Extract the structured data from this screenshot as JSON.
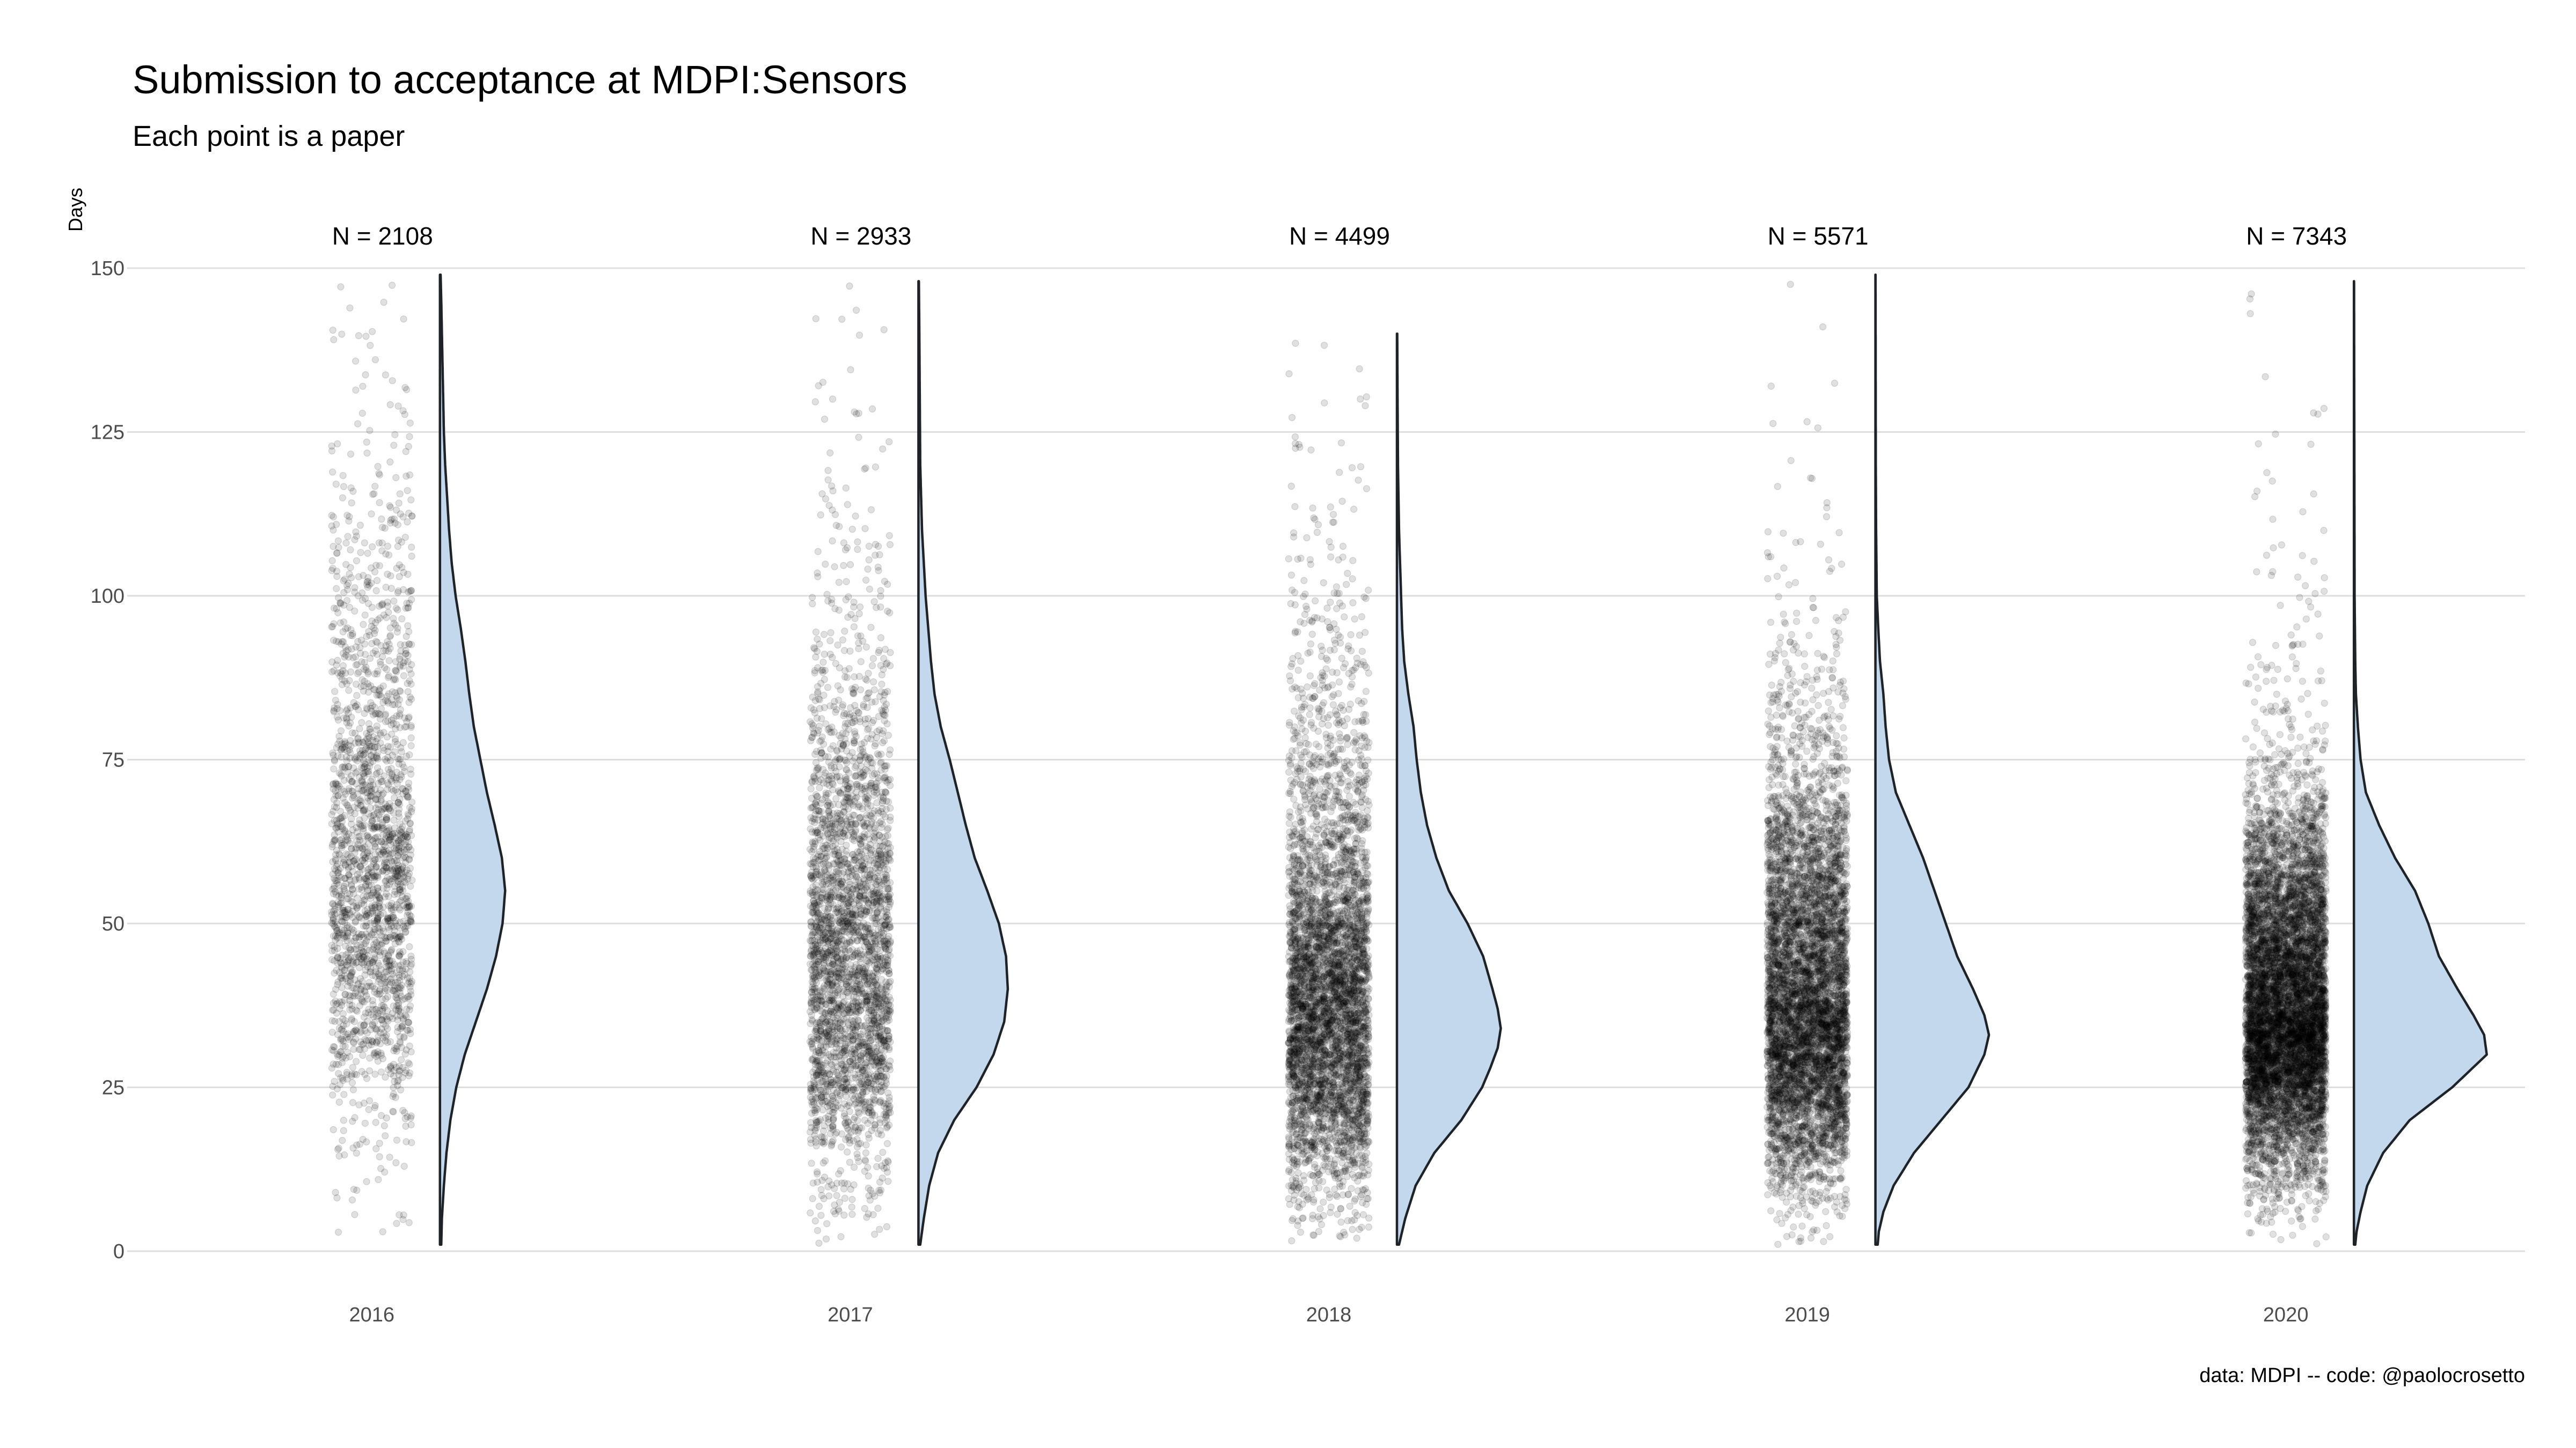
{
  "chart_data": {
    "type": "raincloud",
    "title": "Submission to acceptance at MDPI:Sensors",
    "subtitle": "Each point is a paper",
    "ylabel": "Days",
    "xlabel": "",
    "caption": "data: MDPI -- code: @paolocrosetto",
    "ylim": [
      0,
      150
    ],
    "yticks": [
      0,
      25,
      50,
      75,
      100,
      125,
      150
    ],
    "grid": true,
    "legend": "none",
    "colors": {
      "violin_fill": "#c3d8ec",
      "violin_outline": "#1f2226",
      "points": "#000000",
      "grid": "#dedede"
    },
    "series": [
      {
        "category": "2016",
        "n_label": "N = 2108",
        "n": 2108,
        "mode": 56,
        "density_peak": 0.0135,
        "y_min": 1,
        "y_max": 149,
        "density_shape": [
          [
            1,
            0.02
          ],
          [
            5,
            0.03
          ],
          [
            10,
            0.06
          ],
          [
            15,
            0.1
          ],
          [
            20,
            0.16
          ],
          [
            25,
            0.25
          ],
          [
            30,
            0.38
          ],
          [
            35,
            0.55
          ],
          [
            40,
            0.72
          ],
          [
            45,
            0.86
          ],
          [
            50,
            0.96
          ],
          [
            55,
            1.0
          ],
          [
            60,
            0.95
          ],
          [
            65,
            0.84
          ],
          [
            70,
            0.72
          ],
          [
            75,
            0.62
          ],
          [
            80,
            0.52
          ],
          [
            85,
            0.45
          ],
          [
            90,
            0.39
          ],
          [
            95,
            0.32
          ],
          [
            100,
            0.24
          ],
          [
            105,
            0.18
          ],
          [
            110,
            0.14
          ],
          [
            115,
            0.11
          ],
          [
            120,
            0.08
          ],
          [
            125,
            0.06
          ],
          [
            130,
            0.05
          ],
          [
            135,
            0.04
          ],
          [
            140,
            0.03
          ],
          [
            145,
            0.02
          ],
          [
            149,
            0.01
          ]
        ]
      },
      {
        "category": "2017",
        "n_label": "N = 2933",
        "n": 2933,
        "mode": 41,
        "density_peak": 0.0185,
        "y_min": 1,
        "y_max": 148,
        "density_shape": [
          [
            1,
            0.02
          ],
          [
            5,
            0.06
          ],
          [
            10,
            0.12
          ],
          [
            15,
            0.22
          ],
          [
            20,
            0.4
          ],
          [
            25,
            0.65
          ],
          [
            30,
            0.84
          ],
          [
            35,
            0.96
          ],
          [
            40,
            1.0
          ],
          [
            45,
            0.98
          ],
          [
            50,
            0.9
          ],
          [
            55,
            0.77
          ],
          [
            60,
            0.63
          ],
          [
            65,
            0.53
          ],
          [
            70,
            0.44
          ],
          [
            75,
            0.35
          ],
          [
            80,
            0.25
          ],
          [
            85,
            0.18
          ],
          [
            90,
            0.14
          ],
          [
            95,
            0.11
          ],
          [
            100,
            0.08
          ],
          [
            105,
            0.06
          ],
          [
            110,
            0.04
          ],
          [
            115,
            0.03
          ],
          [
            120,
            0.02
          ],
          [
            130,
            0.015
          ],
          [
            140,
            0.01
          ],
          [
            148,
            0.005
          ]
        ]
      },
      {
        "category": "2018",
        "n_label": "N = 4499",
        "n": 4499,
        "mode": 34,
        "density_peak": 0.0215,
        "y_min": 1,
        "y_max": 140,
        "density_shape": [
          [
            1,
            0.02
          ],
          [
            5,
            0.08
          ],
          [
            10,
            0.18
          ],
          [
            15,
            0.36
          ],
          [
            20,
            0.62
          ],
          [
            25,
            0.82
          ],
          [
            28,
            0.9
          ],
          [
            31,
            0.97
          ],
          [
            34,
            1.0
          ],
          [
            37,
            0.97
          ],
          [
            40,
            0.92
          ],
          [
            45,
            0.83
          ],
          [
            50,
            0.68
          ],
          [
            55,
            0.5
          ],
          [
            60,
            0.38
          ],
          [
            65,
            0.29
          ],
          [
            70,
            0.23
          ],
          [
            75,
            0.19
          ],
          [
            80,
            0.16
          ],
          [
            85,
            0.11
          ],
          [
            90,
            0.07
          ],
          [
            95,
            0.05
          ],
          [
            100,
            0.04
          ],
          [
            110,
            0.02
          ],
          [
            120,
            0.01
          ],
          [
            130,
            0.006
          ],
          [
            140,
            0.003
          ]
        ]
      },
      {
        "category": "2019",
        "n_label": "N = 5571",
        "n": 5571,
        "mode": 33,
        "density_peak": 0.0235,
        "y_min": 1,
        "y_max": 149,
        "density_shape": [
          [
            1,
            0.02
          ],
          [
            3,
            0.03
          ],
          [
            6,
            0.07
          ],
          [
            10,
            0.16
          ],
          [
            15,
            0.34
          ],
          [
            20,
            0.58
          ],
          [
            25,
            0.82
          ],
          [
            30,
            0.96
          ],
          [
            33,
            1.0
          ],
          [
            36,
            0.96
          ],
          [
            40,
            0.86
          ],
          [
            45,
            0.72
          ],
          [
            50,
            0.62
          ],
          [
            55,
            0.52
          ],
          [
            60,
            0.42
          ],
          [
            65,
            0.3
          ],
          [
            70,
            0.18
          ],
          [
            75,
            0.12
          ],
          [
            80,
            0.09
          ],
          [
            85,
            0.07
          ],
          [
            90,
            0.04
          ],
          [
            95,
            0.025
          ],
          [
            100,
            0.012
          ],
          [
            110,
            0.006
          ],
          [
            120,
            0.003
          ],
          [
            149,
            0.001
          ]
        ]
      },
      {
        "category": "2020",
        "n_label": "N = 7343",
        "n": 7343,
        "mode": 31,
        "density_peak": 0.0275,
        "y_min": 1,
        "y_max": 148,
        "density_shape": [
          [
            1,
            0.01
          ],
          [
            3,
            0.02
          ],
          [
            6,
            0.05
          ],
          [
            10,
            0.1
          ],
          [
            15,
            0.22
          ],
          [
            20,
            0.42
          ],
          [
            25,
            0.74
          ],
          [
            30,
            1.0
          ],
          [
            33,
            0.98
          ],
          [
            36,
            0.9
          ],
          [
            40,
            0.78
          ],
          [
            45,
            0.64
          ],
          [
            50,
            0.56
          ],
          [
            55,
            0.46
          ],
          [
            60,
            0.31
          ],
          [
            65,
            0.19
          ],
          [
            70,
            0.09
          ],
          [
            75,
            0.05
          ],
          [
            80,
            0.03
          ],
          [
            85,
            0.015
          ],
          [
            90,
            0.01
          ],
          [
            100,
            0.005
          ],
          [
            148,
            0.001
          ]
        ]
      }
    ]
  }
}
